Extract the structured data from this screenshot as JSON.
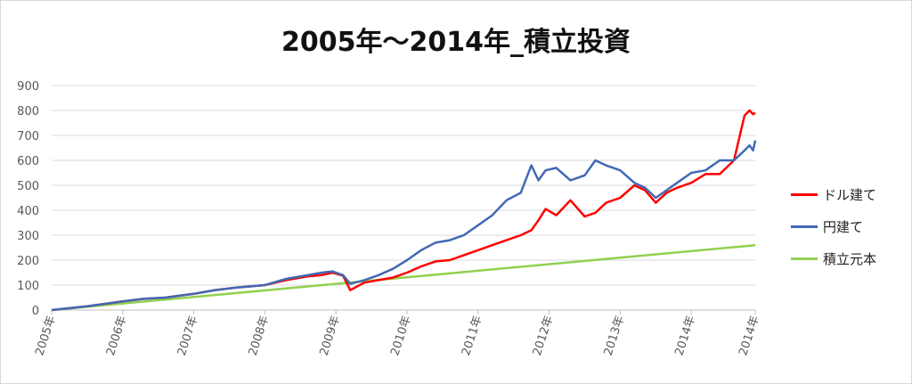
{
  "chart_data": {
    "type": "line",
    "title": "2005年～2014年_積立投資",
    "x_labels": [
      "2005年",
      "2006年",
      "2007年",
      "2008年",
      "2009年",
      "2010年",
      "2011年",
      "2012年",
      "2013年",
      "2014年",
      "2014年"
    ],
    "x": [
      2005,
      2006,
      2007,
      2008,
      2009,
      2010,
      2011,
      2012,
      2013,
      2014,
      2014.9
    ],
    "ylim": [
      0,
      900
    ],
    "yticks": [
      0,
      100,
      200,
      300,
      400,
      500,
      600,
      700,
      800,
      900
    ],
    "grid": true,
    "legend_position": "right",
    "series": [
      {
        "name": "ドル建て",
        "color": "#ff0000",
        "x": [
          2005,
          2005.5,
          2006,
          2006.3,
          2006.6,
          2007,
          2007.3,
          2007.6,
          2008,
          2008.3,
          2008.6,
          2008.8,
          2008.95,
          2009.1,
          2009.2,
          2009.4,
          2009.6,
          2009.8,
          2010,
          2010.2,
          2010.4,
          2010.6,
          2010.8,
          2011,
          2011.2,
          2011.4,
          2011.6,
          2011.75,
          2011.85,
          2011.95,
          2012.1,
          2012.3,
          2012.5,
          2012.65,
          2012.8,
          2013,
          2013.2,
          2013.35,
          2013.5,
          2013.65,
          2013.8,
          2014,
          2014.2,
          2014.4,
          2014.6,
          2014.75,
          2014.82,
          2014.87,
          2014.9
        ],
        "values": [
          0,
          15,
          35,
          45,
          50,
          65,
          80,
          90,
          100,
          120,
          135,
          140,
          150,
          138,
          80,
          110,
          120,
          130,
          150,
          175,
          195,
          200,
          220,
          240,
          260,
          280,
          300,
          320,
          360,
          405,
          380,
          440,
          375,
          390,
          430,
          450,
          500,
          480,
          430,
          470,
          490,
          510,
          545,
          545,
          600,
          780,
          800,
          785,
          790
        ]
      },
      {
        "name": "円建て",
        "color": "#4169b4",
        "x": [
          2005,
          2005.5,
          2006,
          2006.3,
          2006.6,
          2007,
          2007.3,
          2007.6,
          2008,
          2008.3,
          2008.6,
          2008.8,
          2008.95,
          2009.1,
          2009.2,
          2009.4,
          2009.6,
          2009.8,
          2010,
          2010.2,
          2010.4,
          2010.6,
          2010.8,
          2011,
          2011.2,
          2011.4,
          2011.6,
          2011.75,
          2011.85,
          2011.95,
          2012.1,
          2012.3,
          2012.5,
          2012.65,
          2012.8,
          2013,
          2013.2,
          2013.35,
          2013.5,
          2013.65,
          2013.8,
          2014,
          2014.2,
          2014.4,
          2014.6,
          2014.75,
          2014.82,
          2014.87,
          2014.9
        ],
        "values": [
          0,
          15,
          35,
          45,
          50,
          65,
          80,
          90,
          100,
          125,
          140,
          150,
          155,
          140,
          105,
          120,
          140,
          165,
          200,
          240,
          270,
          280,
          300,
          340,
          380,
          440,
          470,
          580,
          520,
          560,
          570,
          520,
          540,
          600,
          580,
          560,
          510,
          490,
          450,
          480,
          510,
          550,
          560,
          600,
          600,
          640,
          660,
          640,
          680
        ]
      },
      {
        "name": "積立元本",
        "color": "#92d050",
        "x": [
          2005,
          2014.9
        ],
        "values": [
          0,
          260
        ]
      }
    ]
  }
}
